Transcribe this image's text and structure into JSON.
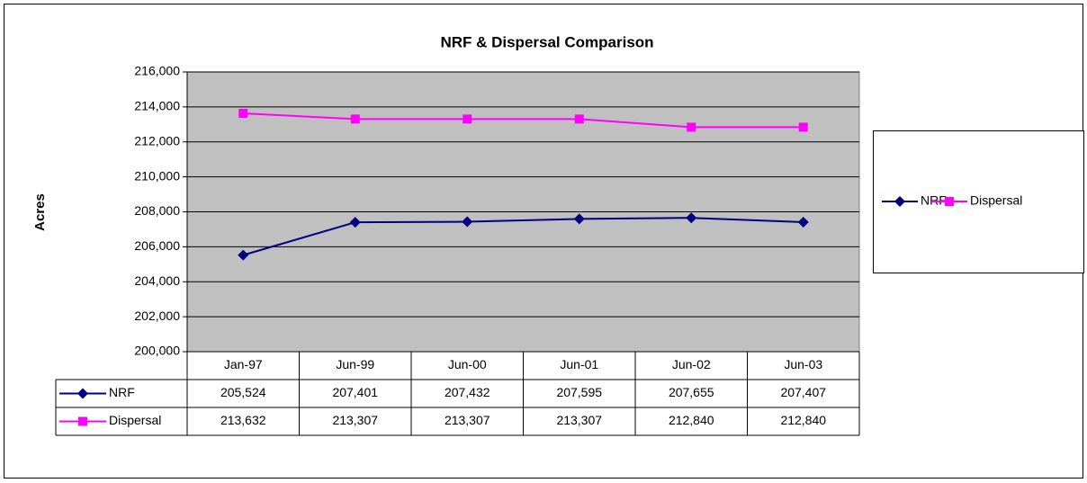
{
  "chart_data": {
    "type": "line",
    "title": "NRF & Dispersal Comparison",
    "y_label": "Acres",
    "categories": [
      "Jan-97",
      "Jun-99",
      "Jun-00",
      "Jun-01",
      "Jun-02",
      "Jun-03"
    ],
    "series": [
      {
        "name": "NRF",
        "color": "#000080",
        "marker": "diamond",
        "values": [
          205524,
          207401,
          207432,
          207595,
          207655,
          207407
        ],
        "value_labels": [
          "205,524",
          "207,401",
          "207,432",
          "207,595",
          "207,655",
          "207,407"
        ]
      },
      {
        "name": "Dispersal",
        "color": "#ff00ff",
        "marker": "square",
        "values": [
          213632,
          213307,
          213307,
          213307,
          212840,
          212840
        ],
        "value_labels": [
          "213,632",
          "213,307",
          "213,307",
          "213,307",
          "212,840",
          "212,840"
        ]
      }
    ],
    "ylim": [
      200000,
      216000
    ],
    "yticks": [
      {
        "value": 200000,
        "label": "200,000"
      },
      {
        "value": 202000,
        "label": "202,000"
      },
      {
        "value": 204000,
        "label": "204,000"
      },
      {
        "value": 206000,
        "label": "206,000"
      },
      {
        "value": 208000,
        "label": "208,000"
      },
      {
        "value": 210000,
        "label": "210,000"
      },
      {
        "value": 212000,
        "label": "212,000"
      },
      {
        "value": 214000,
        "label": "214,000"
      },
      {
        "value": 216000,
        "label": "216,000"
      }
    ],
    "grid": true,
    "legend": "right",
    "plot_background": "#c0c0c0",
    "data_table": true
  }
}
